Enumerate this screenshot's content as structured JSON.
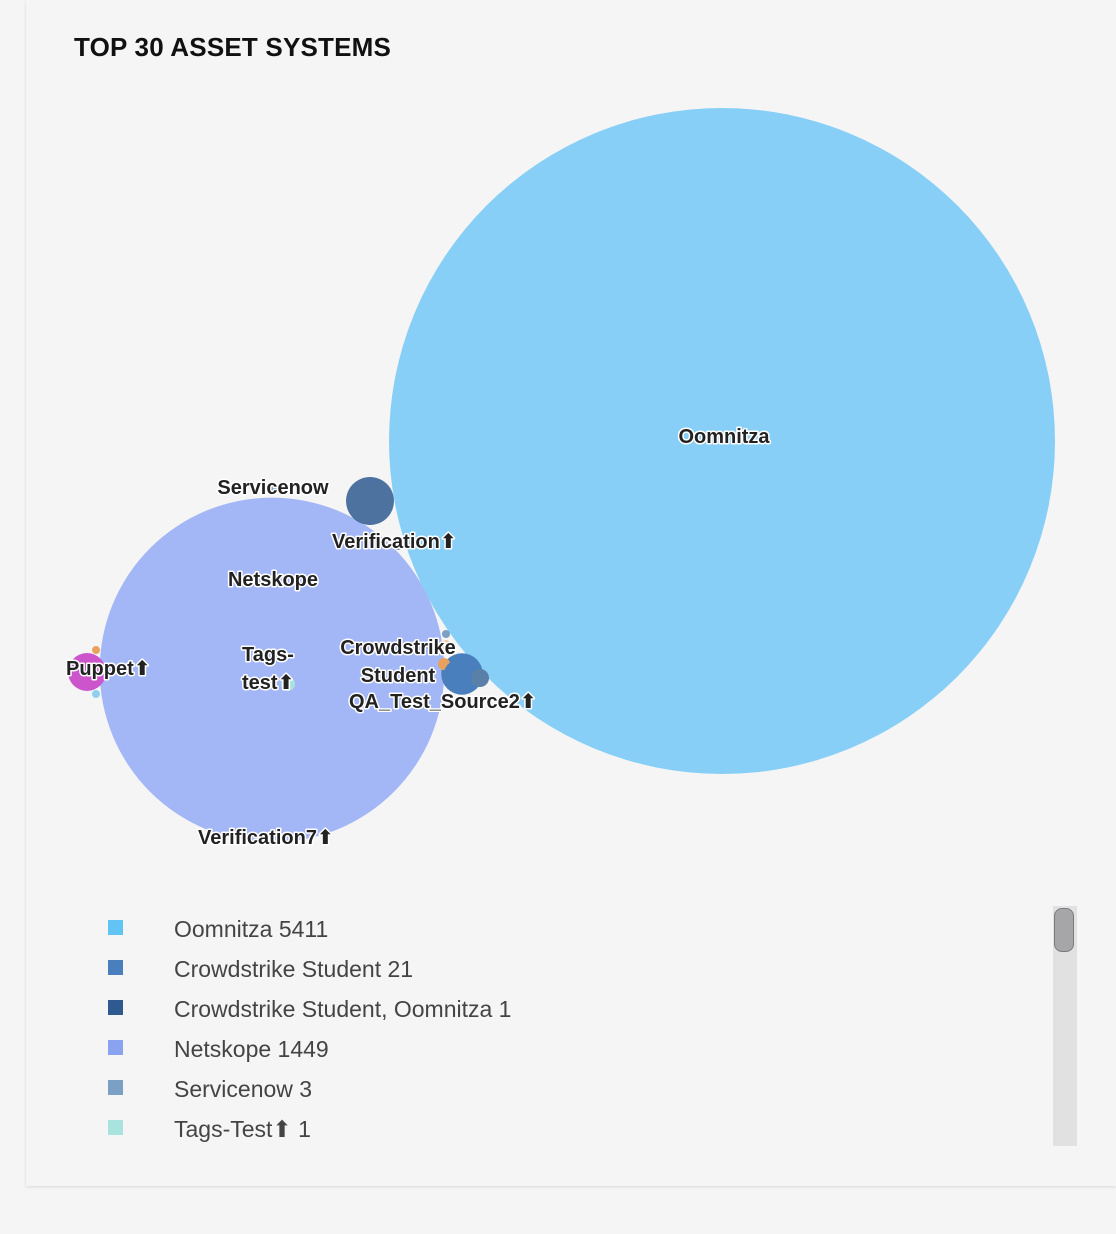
{
  "chart_data": {
    "type": "bubble",
    "title": "TOP 30 ASSET SYSTEMS",
    "bubbles": [
      {
        "name": "Oomnitza",
        "label": "Oomnitza",
        "value": 5411,
        "color": "#87cff6"
      },
      {
        "name": "Netskope",
        "label": "Netskope",
        "value": 1449,
        "color": "#a3b6f6"
      },
      {
        "name": "Crowdstrike Student",
        "label": "Crowdstrike Student",
        "value": 21,
        "color": "#4a7fbd"
      },
      {
        "name": "Crowdstrike Student, Oomnitza",
        "label": "",
        "value": 1,
        "color": "#2f5a8f"
      },
      {
        "name": "Servicenow",
        "label": "Servicenow",
        "value": 3,
        "color": "#7c9fc4"
      },
      {
        "name": "Tags-Test⬆",
        "label": "Tags-test⬆",
        "value": 1,
        "color": "#a8e3dd"
      },
      {
        "name": "Puppet⬆",
        "label": "Puppet⬆",
        "value": 1,
        "color": "#cc55cc"
      },
      {
        "name": "Verification⬆",
        "label": "Verification⬆",
        "value": 1,
        "color": "#5a7fa8"
      },
      {
        "name": "Verification7⬆",
        "label": "Verification7⬆",
        "value": 1,
        "color": "#a3b6f6"
      },
      {
        "name": "QA_Test_Source2⬆",
        "label": "QA_Test_Source2⬆",
        "value": 1,
        "color": "#e8a25e"
      }
    ]
  },
  "legend": {
    "items": [
      {
        "label": "Oomnitza 5411",
        "color": "#62c3f5"
      },
      {
        "label": "Crowdstrike Student 21",
        "color": "#4a7fbd"
      },
      {
        "label": "Crowdstrike Student, Oomnitza 1",
        "color": "#2f5a8f"
      },
      {
        "label": "Netskope 1449",
        "color": "#8aa3f1"
      },
      {
        "label": "Servicenow 3",
        "color": "#7c9fc4"
      },
      {
        "label": "Tags-Test⬆ 1",
        "color": "#a8e3dd"
      }
    ]
  }
}
